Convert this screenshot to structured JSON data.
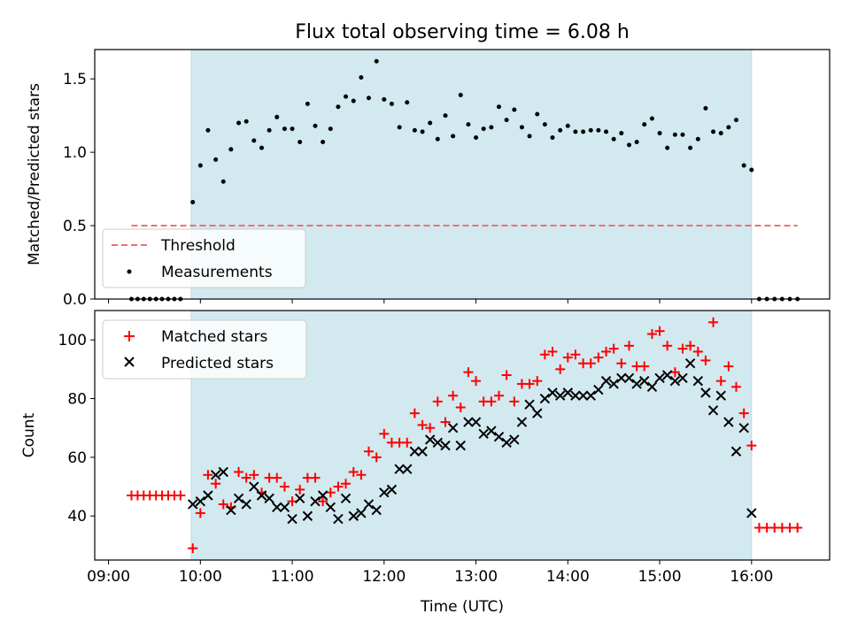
{
  "figure": {
    "title": "Flux total observing time = 6.08 h",
    "xlabel": "Time (UTC)",
    "x_ticks": [
      "09:00",
      "10:00",
      "11:00",
      "12:00",
      "13:00",
      "14:00",
      "15:00",
      "16:00"
    ],
    "observing_window": {
      "start_h": 9.9,
      "end_h": 16.0,
      "color": "#d2e9f0"
    }
  },
  "chart_data": [
    {
      "type": "scatter",
      "name": "ratio",
      "ylabel": "Matched/Predicted stars",
      "ylim": [
        0,
        1.7
      ],
      "xlim_h": [
        8.85,
        16.85
      ],
      "y_ticks": [
        "0.0",
        "0.5",
        "1.0",
        "1.5"
      ],
      "y_tick_values": [
        0,
        0.5,
        1.0,
        1.5
      ],
      "legend": {
        "placement": "lower-left",
        "entries": [
          "Threshold",
          "Measurements"
        ]
      },
      "threshold": {
        "name": "Threshold",
        "y": 0.5,
        "x_range_h": [
          9.25,
          16.5
        ],
        "color": "#f07070",
        "style": "dashed"
      },
      "measurements": {
        "name": "Measurements",
        "color": "#000000",
        "x_h": [
          9.25,
          9.317,
          9.383,
          9.45,
          9.517,
          9.583,
          9.65,
          9.717,
          9.783,
          9.917,
          10.0,
          10.083,
          10.167,
          10.25,
          10.333,
          10.417,
          10.5,
          10.583,
          10.667,
          10.75,
          10.833,
          10.917,
          11.0,
          11.083,
          11.167,
          11.25,
          11.333,
          11.417,
          11.5,
          11.583,
          11.667,
          11.75,
          11.833,
          11.917,
          12.0,
          12.083,
          12.167,
          12.25,
          12.333,
          12.417,
          12.5,
          12.583,
          12.667,
          12.75,
          12.833,
          12.917,
          13.0,
          13.083,
          13.167,
          13.25,
          13.333,
          13.417,
          13.5,
          13.583,
          13.667,
          13.75,
          13.833,
          13.917,
          14.0,
          14.083,
          14.167,
          14.25,
          14.333,
          14.417,
          14.5,
          14.583,
          14.667,
          14.75,
          14.833,
          14.917,
          15.0,
          15.083,
          15.167,
          15.25,
          15.333,
          15.417,
          15.5,
          15.583,
          15.667,
          15.75,
          15.833,
          15.917,
          16.0,
          16.083,
          16.167,
          16.25,
          16.333,
          16.417,
          16.5
        ],
        "y": [
          0,
          0,
          0,
          0,
          0,
          0,
          0,
          0,
          0,
          0.66,
          0.91,
          1.15,
          0.95,
          0.8,
          1.02,
          1.2,
          1.21,
          1.08,
          1.03,
          1.15,
          1.24,
          1.16,
          1.16,
          1.07,
          1.33,
          1.18,
          1.07,
          1.16,
          1.31,
          1.38,
          1.35,
          1.51,
          1.37,
          1.62,
          1.36,
          1.33,
          1.17,
          1.34,
          1.15,
          1.14,
          1.2,
          1.09,
          1.25,
          1.11,
          1.39,
          1.19,
          1.1,
          1.16,
          1.17,
          1.31,
          1.22,
          1.29,
          1.17,
          1.11,
          1.26,
          1.19,
          1.1,
          1.15,
          1.18,
          1.14,
          1.14,
          1.15,
          1.15,
          1.14,
          1.09,
          1.13,
          1.05,
          1.07,
          1.19,
          1.23,
          1.13,
          1.03,
          1.12,
          1.12,
          1.03,
          1.09,
          1.3,
          1.14,
          1.13,
          1.17,
          1.22,
          0.91,
          0.88,
          0,
          0,
          0,
          0,
          0,
          0
        ]
      }
    },
    {
      "type": "scatter",
      "name": "counts",
      "ylabel": "Count",
      "ylim": [
        25,
        110
      ],
      "xlim_h": [
        8.85,
        16.85
      ],
      "y_ticks": [
        "40",
        "60",
        "80",
        "100"
      ],
      "y_tick_values": [
        40,
        60,
        80,
        100
      ],
      "legend": {
        "placement": "upper-left",
        "entries": [
          "Matched stars",
          "Predicted stars"
        ]
      },
      "series": [
        {
          "name": "Matched stars",
          "marker": "plus",
          "color": "#ff0000",
          "x_h": [
            9.25,
            9.317,
            9.383,
            9.45,
            9.517,
            9.583,
            9.65,
            9.717,
            9.783,
            9.917,
            10.0,
            10.083,
            10.167,
            10.25,
            10.333,
            10.417,
            10.5,
            10.583,
            10.667,
            10.75,
            10.833,
            10.917,
            11.0,
            11.083,
            11.167,
            11.25,
            11.333,
            11.417,
            11.5,
            11.583,
            11.667,
            11.75,
            11.833,
            11.917,
            12.0,
            12.083,
            12.167,
            12.25,
            12.333,
            12.417,
            12.5,
            12.583,
            12.667,
            12.75,
            12.833,
            12.917,
            13.0,
            13.083,
            13.167,
            13.25,
            13.333,
            13.417,
            13.5,
            13.583,
            13.667,
            13.75,
            13.833,
            13.917,
            14.0,
            14.083,
            14.167,
            14.25,
            14.333,
            14.417,
            14.5,
            14.583,
            14.667,
            14.75,
            14.833,
            14.917,
            15.0,
            15.083,
            15.167,
            15.25,
            15.333,
            15.417,
            15.5,
            15.583,
            15.667,
            15.75,
            15.833,
            15.917,
            16.0,
            16.083,
            16.167,
            16.25,
            16.333,
            16.417,
            16.5
          ],
          "y": [
            47,
            47,
            47,
            47,
            47,
            47,
            47,
            47,
            47,
            29,
            41,
            54,
            51,
            44,
            43,
            55,
            53,
            54,
            48,
            53,
            53,
            50,
            45,
            49,
            53,
            53,
            45,
            48,
            50,
            51,
            55,
            54,
            62,
            60,
            68,
            65,
            65,
            65,
            75,
            71,
            70,
            79,
            72,
            81,
            77,
            89,
            86,
            79,
            79,
            81,
            88,
            79,
            85,
            85,
            86,
            95,
            96,
            90,
            94,
            95,
            92,
            92,
            94,
            96,
            97,
            92,
            98,
            91,
            91,
            102,
            103,
            98,
            89,
            97,
            98,
            96,
            93,
            106,
            86,
            91,
            84,
            75,
            64,
            36,
            36,
            36,
            36,
            36,
            36
          ]
        },
        {
          "name": "Predicted stars",
          "marker": "x",
          "color": "#000000",
          "x_h": [
            9.917,
            10.0,
            10.083,
            10.167,
            10.25,
            10.333,
            10.417,
            10.5,
            10.583,
            10.667,
            10.75,
            10.833,
            10.917,
            11.0,
            11.083,
            11.167,
            11.25,
            11.333,
            11.417,
            11.5,
            11.583,
            11.667,
            11.75,
            11.833,
            11.917,
            12.0,
            12.083,
            12.167,
            12.25,
            12.333,
            12.417,
            12.5,
            12.583,
            12.667,
            12.75,
            12.833,
            12.917,
            13.0,
            13.083,
            13.167,
            13.25,
            13.333,
            13.417,
            13.5,
            13.583,
            13.667,
            13.75,
            13.833,
            13.917,
            14.0,
            14.083,
            14.167,
            14.25,
            14.333,
            14.417,
            14.5,
            14.583,
            14.667,
            14.75,
            14.833,
            14.917,
            15.0,
            15.083,
            15.167,
            15.25,
            15.333,
            15.417,
            15.5,
            15.583,
            15.667,
            15.75,
            15.833,
            15.917,
            16.0
          ],
          "y": [
            44,
            45,
            47,
            54,
            55,
            42,
            46,
            44,
            50,
            47,
            46,
            43,
            43,
            39,
            46,
            40,
            45,
            47,
            43,
            39,
            46,
            40,
            41,
            44,
            42,
            48,
            49,
            56,
            56,
            62,
            62,
            66,
            65,
            64,
            70,
            64,
            72,
            72,
            68,
            69,
            67,
            65,
            66,
            72,
            78,
            75,
            80,
            82,
            81,
            82,
            81,
            81,
            81,
            83,
            86,
            85,
            87,
            87,
            85,
            86,
            84,
            87,
            88,
            86,
            87,
            92,
            86,
            82,
            76,
            81,
            72,
            62,
            70,
            41
          ]
        }
      ]
    }
  ]
}
